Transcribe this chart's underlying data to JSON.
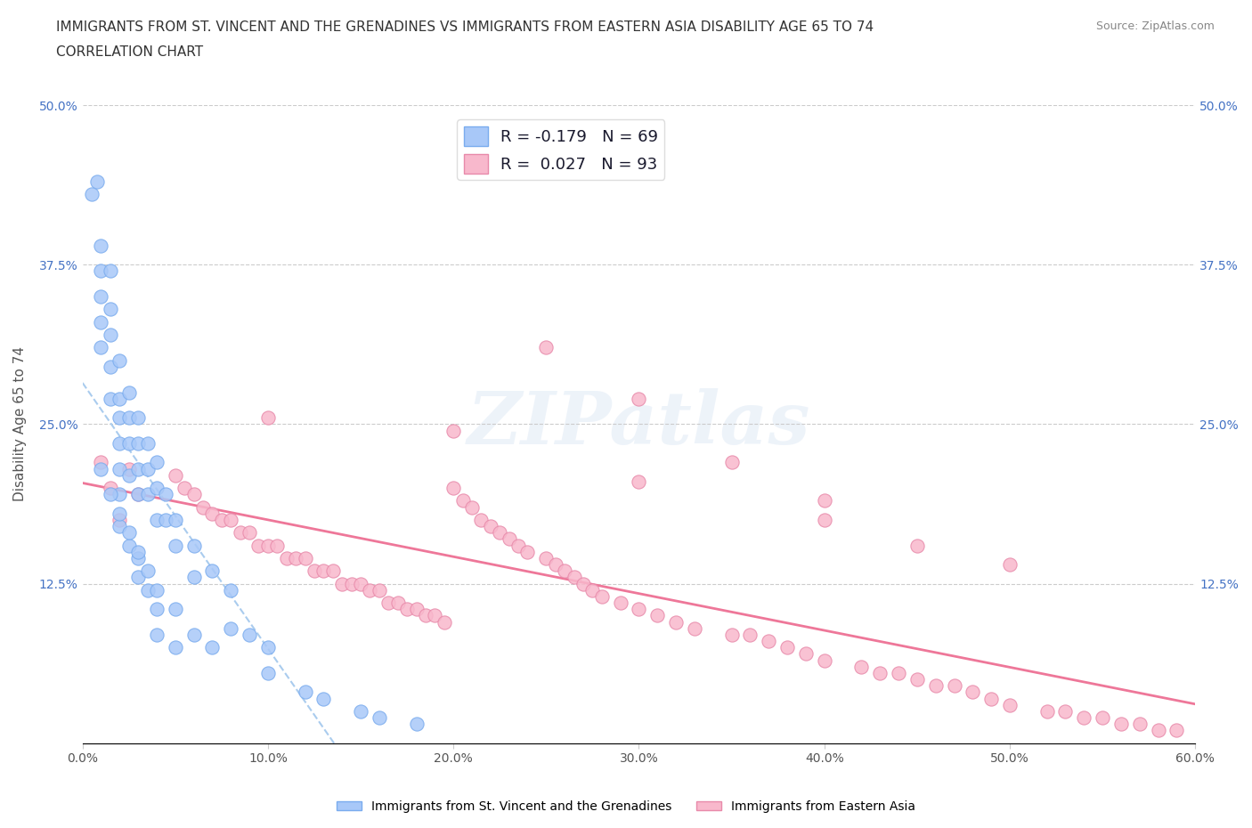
{
  "title_line1": "IMMIGRANTS FROM ST. VINCENT AND THE GRENADINES VS IMMIGRANTS FROM EASTERN ASIA DISABILITY AGE 65 TO 74",
  "title_line2": "CORRELATION CHART",
  "source_text": "Source: ZipAtlas.com",
  "ylabel": "Disability Age 65 to 74",
  "xlim": [
    0.0,
    0.6
  ],
  "ylim": [
    0.0,
    0.5
  ],
  "xticks": [
    0.0,
    0.1,
    0.2,
    0.3,
    0.4,
    0.5,
    0.6
  ],
  "yticks": [
    0.0,
    0.125,
    0.25,
    0.375,
    0.5
  ],
  "xtick_labels": [
    "0.0%",
    "10.0%",
    "20.0%",
    "30.0%",
    "40.0%",
    "50.0%",
    "60.0%"
  ],
  "ytick_labels": [
    "",
    "12.5%",
    "25.0%",
    "37.5%",
    "50.0%"
  ],
  "series1_color": "#a8c8f8",
  "series1_edge": "#7aacee",
  "series2_color": "#f8b8cc",
  "series2_edge": "#e88aaa",
  "trendline1_color": "#aaccee",
  "trendline1_style": "--",
  "trendline2_color": "#ee7799",
  "trendline2_style": "-",
  "R1": -0.179,
  "N1": 69,
  "R2": 0.027,
  "N2": 93,
  "legend_label1": "Immigrants from St. Vincent and the Grenadines",
  "legend_label2": "Immigrants from Eastern Asia",
  "watermark": "ZIPatlas",
  "series1_x": [
    0.005,
    0.008,
    0.01,
    0.01,
    0.01,
    0.01,
    0.01,
    0.015,
    0.015,
    0.015,
    0.015,
    0.015,
    0.02,
    0.02,
    0.02,
    0.02,
    0.02,
    0.025,
    0.025,
    0.025,
    0.025,
    0.03,
    0.03,
    0.03,
    0.03,
    0.035,
    0.035,
    0.035,
    0.04,
    0.04,
    0.04,
    0.045,
    0.045,
    0.05,
    0.05,
    0.06,
    0.06,
    0.07,
    0.08,
    0.08,
    0.09,
    0.1,
    0.1,
    0.12,
    0.13,
    0.15,
    0.16,
    0.18,
    0.02,
    0.02,
    0.025,
    0.03,
    0.03,
    0.035,
    0.04,
    0.04,
    0.05,
    0.01,
    0.015,
    0.02,
    0.025,
    0.03,
    0.035,
    0.04,
    0.05,
    0.06,
    0.07
  ],
  "series1_y": [
    0.43,
    0.44,
    0.39,
    0.37,
    0.35,
    0.33,
    0.31,
    0.37,
    0.34,
    0.32,
    0.295,
    0.27,
    0.3,
    0.27,
    0.255,
    0.235,
    0.215,
    0.275,
    0.255,
    0.235,
    0.21,
    0.255,
    0.235,
    0.215,
    0.195,
    0.235,
    0.215,
    0.195,
    0.22,
    0.2,
    0.175,
    0.195,
    0.175,
    0.175,
    0.155,
    0.155,
    0.13,
    0.135,
    0.12,
    0.09,
    0.085,
    0.075,
    0.055,
    0.04,
    0.035,
    0.025,
    0.02,
    0.015,
    0.195,
    0.17,
    0.155,
    0.145,
    0.13,
    0.12,
    0.105,
    0.085,
    0.075,
    0.215,
    0.195,
    0.18,
    0.165,
    0.15,
    0.135,
    0.12,
    0.105,
    0.085,
    0.075
  ],
  "series2_x": [
    0.01,
    0.015,
    0.02,
    0.025,
    0.03,
    0.05,
    0.055,
    0.06,
    0.065,
    0.07,
    0.075,
    0.08,
    0.085,
    0.09,
    0.095,
    0.1,
    0.105,
    0.11,
    0.115,
    0.12,
    0.125,
    0.13,
    0.135,
    0.14,
    0.145,
    0.15,
    0.155,
    0.16,
    0.165,
    0.17,
    0.175,
    0.18,
    0.185,
    0.19,
    0.195,
    0.2,
    0.205,
    0.21,
    0.215,
    0.22,
    0.225,
    0.23,
    0.235,
    0.24,
    0.25,
    0.255,
    0.26,
    0.265,
    0.27,
    0.275,
    0.28,
    0.29,
    0.3,
    0.31,
    0.32,
    0.33,
    0.35,
    0.36,
    0.37,
    0.38,
    0.39,
    0.4,
    0.42,
    0.43,
    0.44,
    0.45,
    0.46,
    0.47,
    0.48,
    0.49,
    0.5,
    0.52,
    0.53,
    0.54,
    0.55,
    0.56,
    0.57,
    0.58,
    0.59,
    0.25,
    0.3,
    0.35,
    0.4,
    0.45,
    0.1,
    0.2,
    0.3,
    0.4,
    0.5
  ],
  "series2_y": [
    0.22,
    0.2,
    0.175,
    0.215,
    0.195,
    0.21,
    0.2,
    0.195,
    0.185,
    0.18,
    0.175,
    0.175,
    0.165,
    0.165,
    0.155,
    0.155,
    0.155,
    0.145,
    0.145,
    0.145,
    0.135,
    0.135,
    0.135,
    0.125,
    0.125,
    0.125,
    0.12,
    0.12,
    0.11,
    0.11,
    0.105,
    0.105,
    0.1,
    0.1,
    0.095,
    0.2,
    0.19,
    0.185,
    0.175,
    0.17,
    0.165,
    0.16,
    0.155,
    0.15,
    0.145,
    0.14,
    0.135,
    0.13,
    0.125,
    0.12,
    0.115,
    0.11,
    0.105,
    0.1,
    0.095,
    0.09,
    0.085,
    0.085,
    0.08,
    0.075,
    0.07,
    0.065,
    0.06,
    0.055,
    0.055,
    0.05,
    0.045,
    0.045,
    0.04,
    0.035,
    0.03,
    0.025,
    0.025,
    0.02,
    0.02,
    0.015,
    0.015,
    0.01,
    0.01,
    0.31,
    0.27,
    0.22,
    0.19,
    0.155,
    0.255,
    0.245,
    0.205,
    0.175,
    0.14
  ]
}
